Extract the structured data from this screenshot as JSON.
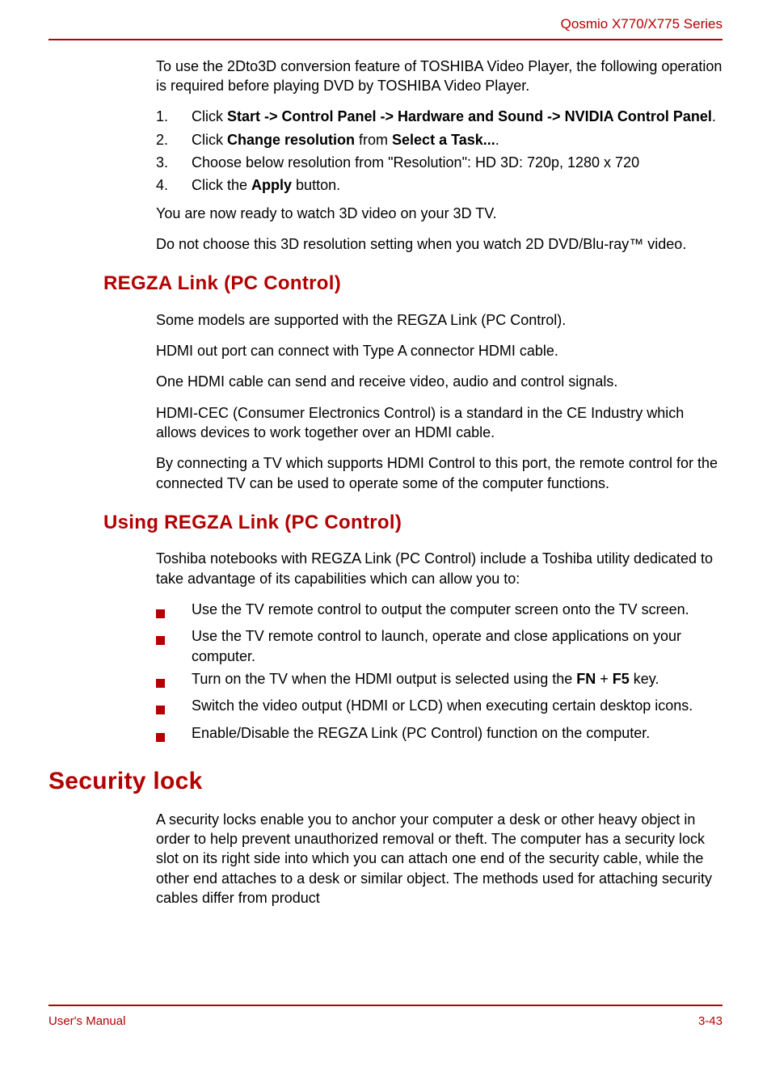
{
  "header": {
    "series": "Qosmio X770/X775 Series"
  },
  "intro": {
    "p1": "To use the 2Dto3D conversion feature of TOSHIBA Video Player, the following operation is required before playing DVD by TOSHIBA Video Player."
  },
  "steps": {
    "s1_pre": "Click ",
    "s1_bold": "Start -> Control Panel -> Hardware and Sound -> NVIDIA Control Panel",
    "s1_post": ".",
    "s2_pre": "Click ",
    "s2_b1": "Change resolution",
    "s2_mid": " from ",
    "s2_b2": "Select a Task...",
    "s2_post": ".",
    "s3": "Choose below resolution from \"Resolution\": HD 3D: 720p, 1280 x 720",
    "s4_pre": "Click the ",
    "s4_b": "Apply",
    "s4_post": " button."
  },
  "post_steps": {
    "p1": "You are now ready to watch 3D video on your 3D TV.",
    "p2": "Do not choose this 3D resolution setting when you watch 2D DVD/Blu-ray™ video."
  },
  "regza": {
    "title": "REGZA Link (PC Control)",
    "p1": "Some models are supported with the REGZA Link (PC Control).",
    "p2": "HDMI out port can connect with Type A connector HDMI cable.",
    "p3": "One HDMI cable can send and receive video, audio and control signals.",
    "p4": "HDMI-CEC (Consumer Electronics Control) is a standard in the CE Industry which allows devices to work together over an HDMI cable.",
    "p5": "By connecting a TV which supports HDMI Control to this port, the remote control for the connected TV can be used to operate some of the computer functions."
  },
  "using_regza": {
    "title": "Using REGZA Link (PC Control)",
    "p1": "Toshiba notebooks with REGZA Link (PC Control) include a Toshiba utility dedicated to take advantage of its capabilities which can allow you to:",
    "b1": "Use the TV remote control to output the computer screen onto the TV screen.",
    "b2": "Use the TV remote control to launch, operate and close applications on your computer.",
    "b3_pre": "Turn on the TV when the HDMI output is selected using the ",
    "b3_k1": "FN",
    "b3_mid": " + ",
    "b3_k2": "F5",
    "b3_post": " key.",
    "b4": "Switch the video output (HDMI or LCD) when executing certain desktop icons.",
    "b5": "Enable/Disable the REGZA Link (PC Control) function on the computer."
  },
  "security": {
    "title": "Security lock",
    "p1": "A security locks enable you to anchor your computer a desk or other heavy object in order to help prevent unauthorized removal or theft. The computer has a security lock slot on its right side into which you can attach one end of the security cable, while the other end attaches to a desk or similar object. The methods used for attaching security cables differ from product"
  },
  "footer": {
    "left": "User's Manual",
    "right": "3-43"
  },
  "colors": {
    "accent": "#b30000",
    "text": "#000000",
    "bg": "#ffffff"
  },
  "typography": {
    "body_fontsize": 18,
    "h1_fontsize": 30,
    "h2_fontsize": 24,
    "header_fontsize": 17,
    "footer_fontsize": 15
  }
}
